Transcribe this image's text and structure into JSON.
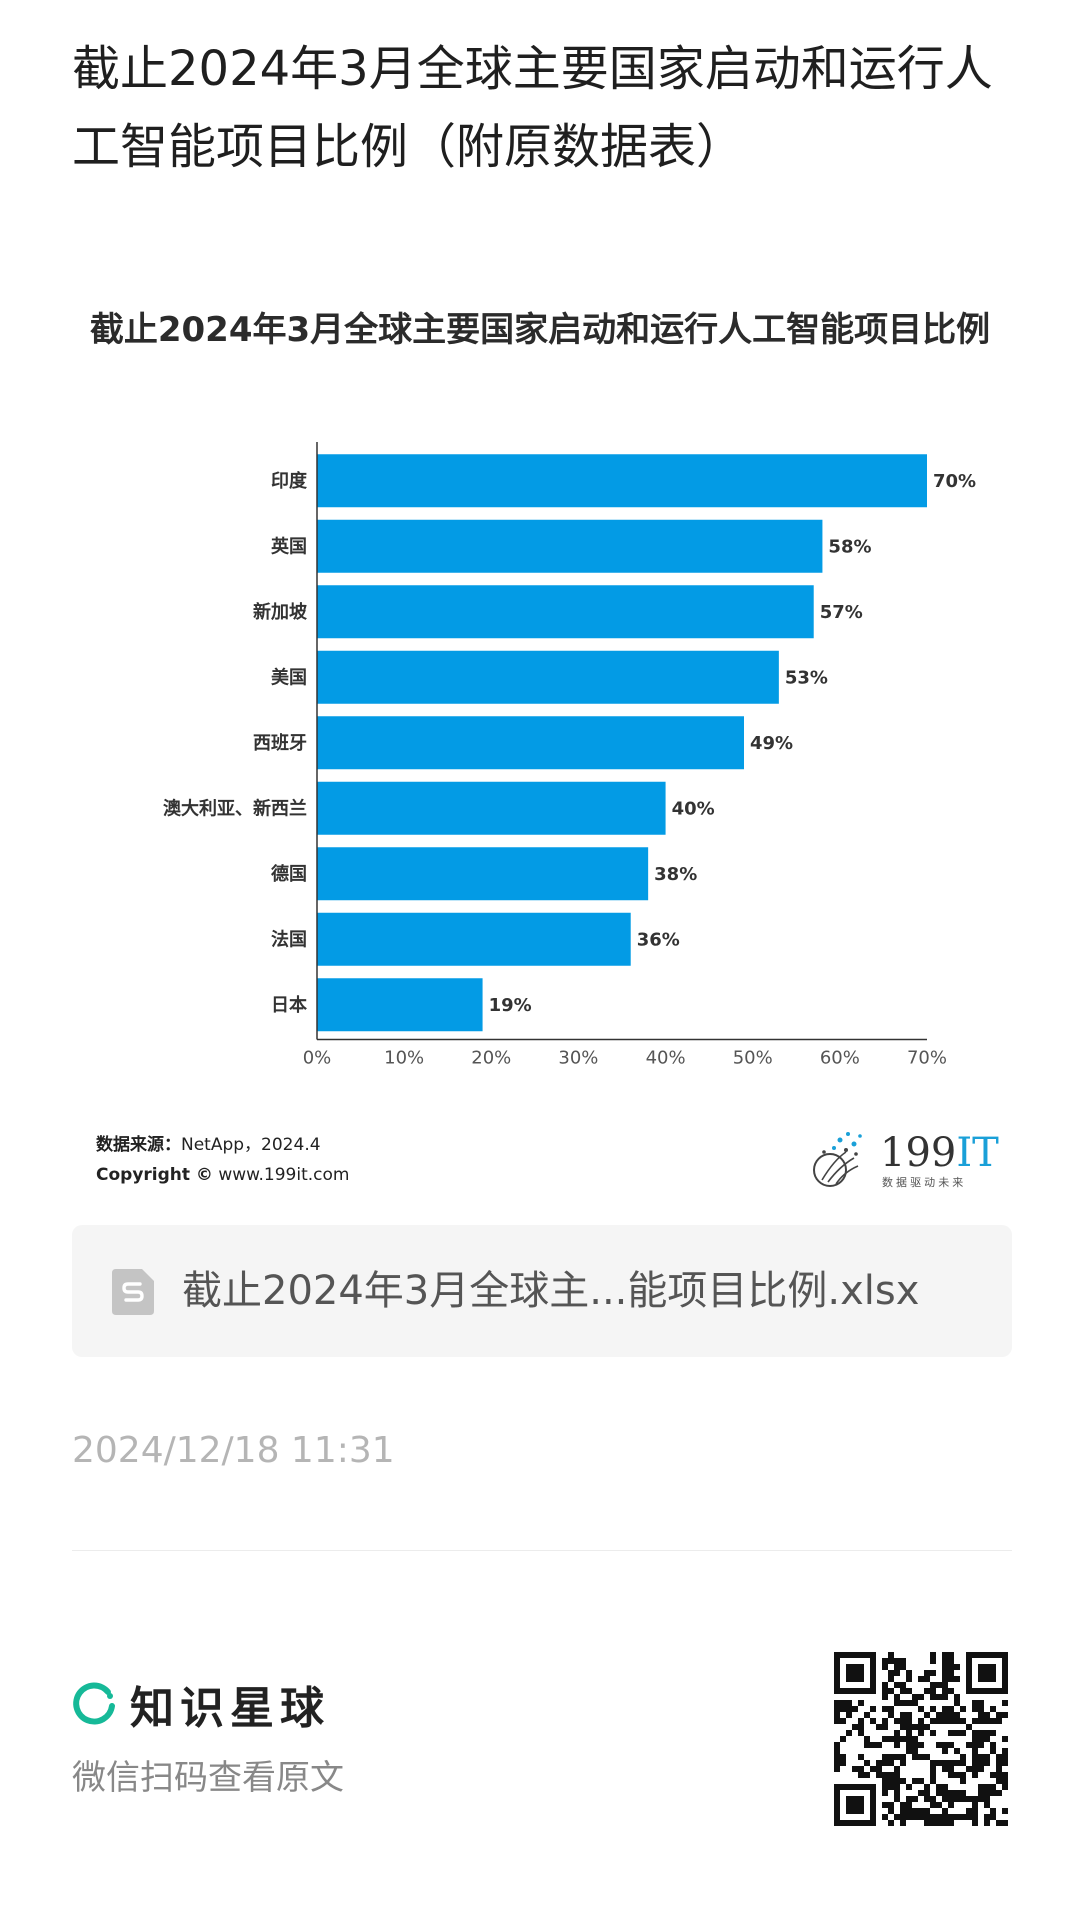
{
  "page": {
    "title": "截止2024年3月全球主要国家启动和运行人工智能项目比例（附原数据表）"
  },
  "chart_data": {
    "type": "bar",
    "orientation": "horizontal",
    "title": "截止2024年3月全球主要国家启动和运行人工智能项目比例",
    "categories": [
      "印度",
      "英国",
      "新加坡",
      "美国",
      "西班牙",
      "澳大利亚、新西兰",
      "德国",
      "法国",
      "日本"
    ],
    "values": [
      70,
      58,
      57,
      53,
      49,
      40,
      38,
      36,
      19
    ],
    "value_labels": [
      "70%",
      "58%",
      "57%",
      "53%",
      "49%",
      "40%",
      "38%",
      "36%",
      "19%"
    ],
    "xlim": [
      0,
      70
    ],
    "x_ticks": [
      "0%",
      "10%",
      "20%",
      "30%",
      "40%",
      "50%",
      "60%",
      "70%"
    ],
    "bar_color": "#039be5",
    "grid": false
  },
  "source": {
    "label": "数据来源：",
    "value": "NetApp，2024.4",
    "copyright_label": "Copyright ©",
    "copyright_value": "www.199it.com"
  },
  "brand": {
    "name_dark": "199",
    "name_accent": "IT",
    "slogan": "数 据 驱 动 未 来",
    "accent_color": "#1aa0d8"
  },
  "attachment": {
    "icon": "spreadsheet-file-icon",
    "filename": "截止2024年3月全球主...能项目比例.xlsx"
  },
  "timestamp": "2024/12/18 11:31",
  "footer": {
    "platform_name": "知识星球",
    "platform_color": "#16b998",
    "scan_hint": "微信扫码查看原文"
  }
}
